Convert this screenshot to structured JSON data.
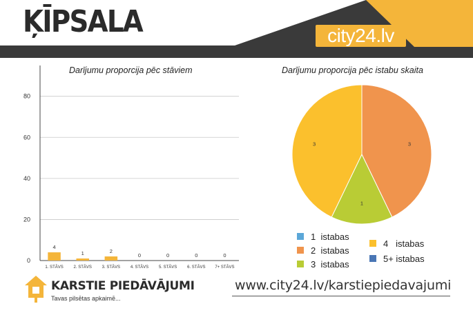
{
  "header": {
    "title": "ĶĪPSALA",
    "brand": "city24.lv",
    "colors": {
      "dark": "#3a3a3a",
      "accent": "#f4b53a"
    }
  },
  "chart_data": [
    {
      "type": "bar",
      "title": "Darījumu proporcija pēc stāviem",
      "categories": [
        "1. STĀVS",
        "2. STĀVS",
        "3. STĀVS",
        "4. STĀVS",
        "5. STĀVS",
        "6. STĀVS",
        "7+ STĀVS"
      ],
      "values": [
        4,
        1,
        2,
        0,
        0,
        0,
        0
      ],
      "data_labels": [
        "4",
        "1",
        "2",
        "0",
        "0",
        "0",
        "0"
      ],
      "ylim": [
        0,
        95
      ],
      "yticks": [
        0,
        20,
        40,
        60,
        80
      ],
      "ytick_labels": [
        "0",
        "20",
        "40",
        "60",
        "80"
      ],
      "grid": true,
      "bar_color": "#f4b53a"
    },
    {
      "type": "pie",
      "title": "Darījumu proporcija pēc istabu skaita",
      "slices": [
        {
          "name": "2 istabas",
          "value": 3,
          "label": "3",
          "color": "#f0944d"
        },
        {
          "name": "3 istabas",
          "value": 1,
          "label": "1",
          "color": "#b9cc35"
        },
        {
          "name": "4   istabas",
          "value": 3,
          "label": "3",
          "color": "#fbc02d"
        }
      ],
      "legend": [
        {
          "label": "1  istabas",
          "color": "#5ba7d8"
        },
        {
          "label": "2  istabas",
          "color": "#f0944d"
        },
        {
          "label": "3  istabas",
          "color": "#b9cc35"
        },
        {
          "label": "4   istabas",
          "color": "#fbc02d"
        },
        {
          "label": "5+ istabas",
          "color": "#4a76b5"
        }
      ],
      "legend_position": "bottom"
    }
  ],
  "footer": {
    "brand": "KARSTIE PIEDĀVĀJUMI",
    "tagline": "Tavas pilsētas apkaimē...",
    "url": "www.city24.lv/karstiepiedavajumi"
  }
}
